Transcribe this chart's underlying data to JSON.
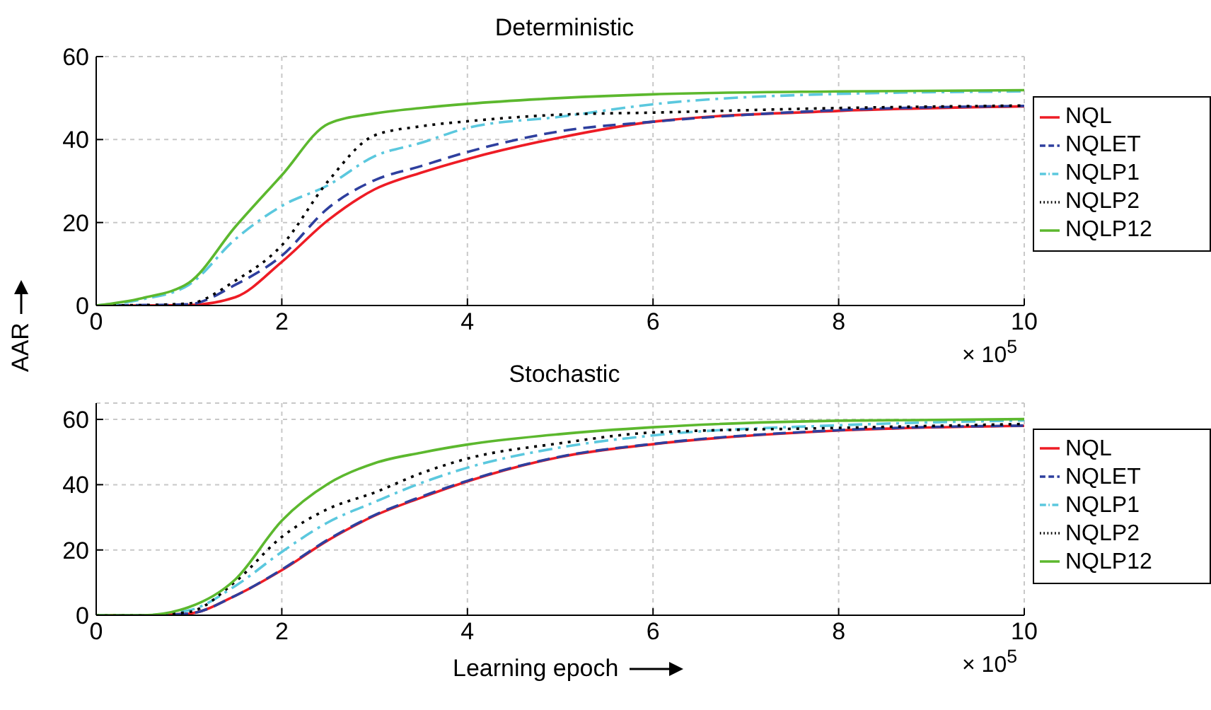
{
  "chart_data": [
    {
      "type": "line",
      "title": "Deterministic",
      "ylabel": "AAR",
      "x": [
        0,
        0.5,
        1,
        1.5,
        2,
        2.5,
        3,
        3.5,
        4,
        5,
        6,
        8,
        10
      ],
      "xlim": [
        0,
        10
      ],
      "xticks": [
        0,
        2,
        4,
        6,
        8,
        10
      ],
      "ylim": [
        0,
        60
      ],
      "yticks": [
        0,
        20,
        40,
        60
      ],
      "grid": true,
      "legend": "right",
      "annotations": [
        "× 10$^{5}$"
      ],
      "series": [
        {
          "name": "NQL",
          "color": "#ee1c25",
          "line_style": "solid",
          "values": [
            0,
            0,
            0.1,
            2,
            10.5,
            20.6,
            28,
            32,
            35.3,
            40.5,
            44.3,
            46.9,
            48
          ]
        },
        {
          "name": "NQLET",
          "color": "#2e3f9e",
          "line_style": "dashed",
          "values": [
            0,
            0.1,
            0.3,
            5,
            12,
            23.5,
            30.2,
            33.6,
            37,
            42,
            44.3,
            47.1,
            48.1
          ]
        },
        {
          "name": "NQLP1",
          "color": "#5bc8de",
          "line_style": "dashdot",
          "values": [
            0,
            1.5,
            5,
            16,
            24,
            29,
            36,
            39.2,
            42.8,
            45.5,
            48.5,
            51,
            51.6
          ]
        },
        {
          "name": "NQLP2",
          "color": "#000000",
          "line_style": "dotted",
          "values": [
            0,
            0.1,
            0.5,
            6,
            14.5,
            30,
            41,
            43.2,
            44.4,
            46,
            46.5,
            47.6,
            48.2
          ]
        },
        {
          "name": "NQLP12",
          "color": "#5cb82e",
          "line_style": "solid",
          "values": [
            0,
            1.8,
            5.5,
            19,
            31.4,
            43.8,
            46.3,
            47.6,
            48.6,
            50,
            50.9,
            51.6,
            51.9
          ]
        }
      ]
    },
    {
      "type": "line",
      "title": "Stochastic",
      "xlabel": "Learning epoch",
      "x": [
        0,
        0.5,
        1,
        1.5,
        2,
        2.5,
        3,
        3.5,
        4,
        5,
        6,
        8,
        10
      ],
      "xlim": [
        0,
        10
      ],
      "xticks": [
        0,
        2,
        4,
        6,
        8,
        10
      ],
      "ylim": [
        0,
        65
      ],
      "yticks": [
        0,
        20,
        40,
        60
      ],
      "grid": true,
      "legend": "right",
      "annotations": [
        "× 10$^{5}$"
      ],
      "series": [
        {
          "name": "NQL",
          "color": "#ee1c25",
          "line_style": "solid",
          "values": [
            0,
            0,
            0.5,
            6,
            13.8,
            23,
            30.5,
            36,
            41,
            48.5,
            52.4,
            56.6,
            58
          ]
        },
        {
          "name": "NQLET",
          "color": "#2e3f9e",
          "line_style": "dashed",
          "values": [
            0,
            0,
            0.5,
            6,
            14,
            23.2,
            30.7,
            36.3,
            41.2,
            48.6,
            52.5,
            56.7,
            58.1
          ]
        },
        {
          "name": "NQLP1",
          "color": "#5bc8de",
          "line_style": "dashdot",
          "values": [
            0,
            0,
            1.5,
            9,
            19.4,
            28.5,
            34.7,
            40.5,
            45.2,
            51.4,
            55.1,
            58.2,
            59.7
          ]
        },
        {
          "name": "NQLP2",
          "color": "#000000",
          "line_style": "dotted",
          "values": [
            0,
            0,
            1,
            10.3,
            24,
            32.6,
            37.6,
            43.5,
            48,
            52.7,
            56,
            57.4,
            58.6
          ]
        },
        {
          "name": "NQLP12",
          "color": "#5cb82e",
          "line_style": "solid",
          "values": [
            0,
            0,
            2.5,
            11,
            29,
            40.3,
            46.6,
            49.8,
            52.3,
            55.5,
            57.6,
            59.6,
            60.1
          ]
        }
      ]
    }
  ]
}
